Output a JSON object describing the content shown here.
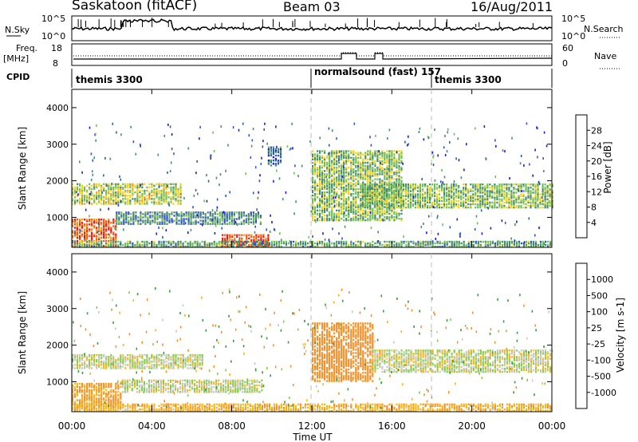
{
  "header": {
    "site": "Saskatoon (fitACF)",
    "beam": "Beam 03",
    "date": "16/Aug/2011"
  },
  "noise_panel": {
    "left_label": "N.Sky",
    "right_label": "N.Search",
    "left_ticks": [
      "10^5",
      "10^0"
    ],
    "right_ticks": [
      "10^5",
      "10^0"
    ]
  },
  "freq_panel": {
    "left_label_1": "Freq.",
    "left_label_2": "[MHz]",
    "right_label": "Nave",
    "left_ticks": [
      "18",
      "8"
    ],
    "right_ticks": [
      "60",
      "0"
    ]
  },
  "cpid": {
    "label": "CPID",
    "segments": [
      {
        "name": "themis 3300",
        "start_hour": 0
      },
      {
        "name": "normalsound (fast) 157",
        "start_hour": 12
      },
      {
        "name": "themis 3300",
        "start_hour": 18
      }
    ]
  },
  "x_axis": {
    "label": "Time UT",
    "ticks": [
      "00:00",
      "04:00",
      "08:00",
      "12:00",
      "16:00",
      "20:00",
      "00:00"
    ]
  },
  "power_panel": {
    "ylabel": "Slant Range [km]",
    "yticks": [
      "1000",
      "2000",
      "3000",
      "4000"
    ],
    "colorbar_label": "Power [dB]",
    "colorbar_ticks": [
      "4",
      "8",
      "12",
      "16",
      "20",
      "24",
      "28"
    ],
    "colors": [
      "#1a1adc",
      "#2e55c8",
      "#4a8a6e",
      "#6fbf5a",
      "#f2d21e",
      "#f39a1c",
      "#f05a10",
      "#e81818"
    ]
  },
  "velocity_panel": {
    "ylabel": "Slant Range [km]",
    "yticks": [
      "1000",
      "2000",
      "3000",
      "4000"
    ],
    "colorbar_label": "Velocity [m s-1]",
    "colorbar_ticks": [
      "1000",
      "500",
      "100",
      "25",
      "-25",
      "-100",
      "-500",
      "-1000"
    ],
    "colors": [
      "#2a34c8",
      "#2e6e88",
      "#3a9a44",
      "#86cc50",
      "#c8c8c0",
      "#f2b81c",
      "#f5902a",
      "#f05a14",
      "#e41414"
    ]
  },
  "chart_data": {
    "type": "heatmap",
    "x_range_hours": [
      0,
      24
    ],
    "y_range_km": [
      180,
      4500
    ],
    "power_bands": [
      {
        "t0": 0.0,
        "t1": 5.5,
        "r0": 1350,
        "r1": 1900,
        "value_db": 16
      },
      {
        "t0": 0.0,
        "t1": 2.2,
        "r0": 200,
        "r1": 950,
        "value_db": 26
      },
      {
        "t0": 2.2,
        "t1": 9.5,
        "r0": 800,
        "r1": 1150,
        "value_db": 10
      },
      {
        "t0": 7.5,
        "t1": 9.8,
        "r0": 180,
        "r1": 500,
        "value_db": 27
      },
      {
        "t0": 0.0,
        "t1": 24.0,
        "r0": 180,
        "r1": 350,
        "value_db": 12
      },
      {
        "t0": 12.0,
        "t1": 16.5,
        "r0": 900,
        "r1": 2800,
        "value_db": 14
      },
      {
        "t0": 14.5,
        "t1": 24.0,
        "r0": 1250,
        "r1": 1900,
        "value_db": 14
      },
      {
        "t0": 9.8,
        "t1": 10.5,
        "r0": 2400,
        "r1": 2900,
        "value_db": 8
      }
    ],
    "velocity_bands": [
      {
        "t0": 0.0,
        "t1": 6.5,
        "r0": 1350,
        "r1": 1750,
        "value_ms": 10
      },
      {
        "t0": 0.0,
        "t1": 2.5,
        "r0": 250,
        "r1": 950,
        "value_ms": -120
      },
      {
        "t0": 2.5,
        "t1": 9.5,
        "r0": 700,
        "r1": 1050,
        "value_ms": 10
      },
      {
        "t0": 12.0,
        "t1": 15.0,
        "r0": 1000,
        "r1": 2600,
        "value_ms": -300
      },
      {
        "t0": 15.0,
        "t1": 24.0,
        "r0": 1250,
        "r1": 1850,
        "value_ms": 5
      },
      {
        "t0": 0.0,
        "t1": 24.0,
        "r0": 180,
        "r1": 400,
        "value_ms": -80
      }
    ]
  }
}
